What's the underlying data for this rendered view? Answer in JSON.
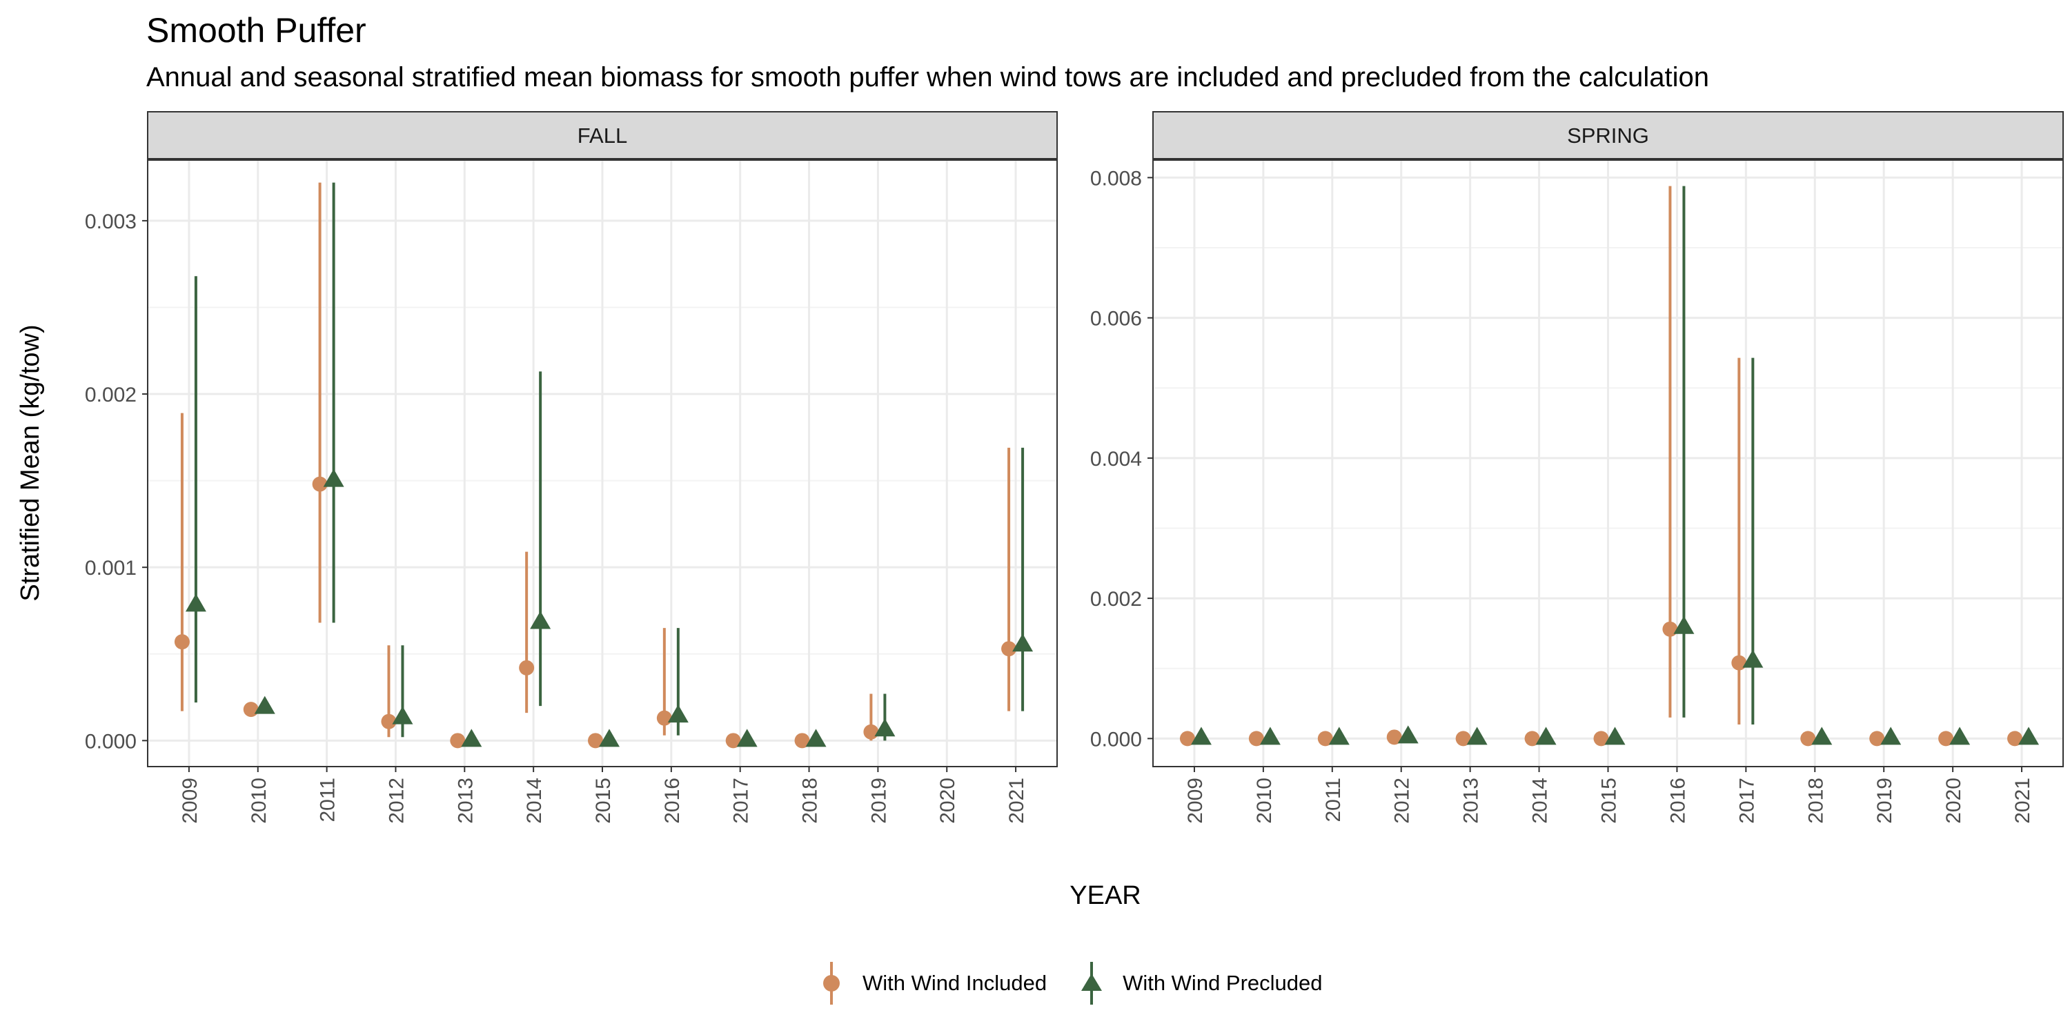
{
  "title": "Smooth Puffer",
  "subtitle": "Annual and seasonal stratified mean biomass for smooth puffer when wind tows are included and precluded from the calculation",
  "colors": {
    "included": "#D08A5C",
    "precluded": "#3B6440",
    "strip_bg": "#D9D9D9",
    "grid": "#EBEBEB",
    "border": "#333333"
  },
  "chart_data": {
    "type": "scatter",
    "title": "Smooth Puffer",
    "subtitle": "Annual and seasonal stratified mean biomass for smooth puffer when wind tows are included and precluded from the calculation",
    "xlabel": "YEAR",
    "ylabel": "Stratified Mean (kg/tow)",
    "legend_position": "bottom",
    "grid": true,
    "x": [
      "2009",
      "2010",
      "2011",
      "2012",
      "2013",
      "2014",
      "2015",
      "2016",
      "2017",
      "2018",
      "2019",
      "2020",
      "2021"
    ],
    "panels": [
      {
        "name": "FALL",
        "ylim": [
          -0.00015,
          0.00335
        ],
        "yticks": [
          0.0,
          0.001,
          0.002,
          0.003
        ],
        "ytick_labels": [
          "0.000",
          "0.001",
          "0.002",
          "0.003"
        ],
        "series": [
          {
            "name": "With Wind Included",
            "values": [
              0.00057,
              0.00018,
              0.00148,
              0.00011,
              0.0,
              0.00042,
              0.0,
              0.00013,
              0.0,
              0.0,
              5e-05,
              null,
              0.00053
            ],
            "lower": [
              0.00017,
              null,
              0.00068,
              2e-05,
              null,
              0.00016,
              null,
              3e-05,
              null,
              null,
              0.0,
              null,
              0.00017
            ],
            "upper": [
              0.00189,
              null,
              0.00322,
              0.00055,
              null,
              0.00109,
              null,
              0.00065,
              null,
              null,
              0.00027,
              null,
              0.00169
            ]
          },
          {
            "name": "With Wind Precluded",
            "values": [
              0.00078,
              0.00019,
              0.0015,
              0.00013,
              0.0,
              0.00068,
              0.0,
              0.00014,
              0.0,
              0.0,
              6e-05,
              null,
              0.00055
            ],
            "lower": [
              0.00022,
              null,
              0.00068,
              2e-05,
              null,
              0.0002,
              null,
              3e-05,
              null,
              null,
              0.0,
              null,
              0.00017
            ],
            "upper": [
              0.00268,
              null,
              0.00322,
              0.00055,
              null,
              0.00213,
              null,
              0.00065,
              null,
              null,
              0.00027,
              null,
              0.00169
            ]
          }
        ]
      },
      {
        "name": "SPRING",
        "ylim": [
          -0.0004,
          0.00825
        ],
        "yticks": [
          0.0,
          0.002,
          0.004,
          0.006,
          0.008
        ],
        "ytick_labels": [
          "0.000",
          "0.002",
          "0.004",
          "0.006",
          "0.008"
        ],
        "series": [
          {
            "name": "With Wind Included",
            "values": [
              0.0,
              0.0,
              0.0,
              2e-05,
              0.0,
              0.0,
              0.0,
              0.00156,
              0.00108,
              0.0,
              0.0,
              0.0,
              0.0
            ],
            "lower": [
              null,
              null,
              null,
              null,
              null,
              null,
              null,
              0.0003,
              0.0002,
              null,
              null,
              null,
              null
            ],
            "upper": [
              null,
              null,
              null,
              null,
              null,
              null,
              null,
              0.00788,
              0.00543,
              null,
              null,
              null,
              null
            ]
          },
          {
            "name": "With Wind Precluded",
            "values": [
              0.0,
              0.0,
              0.0,
              2e-05,
              0.0,
              0.0,
              0.0,
              0.00158,
              0.0011,
              0.0,
              0.0,
              0.0,
              0.0
            ],
            "lower": [
              null,
              null,
              null,
              null,
              null,
              null,
              null,
              0.0003,
              0.0002,
              null,
              null,
              null,
              null
            ],
            "upper": [
              null,
              null,
              null,
              null,
              null,
              null,
              null,
              0.00788,
              0.00543,
              null,
              null,
              null,
              null
            ]
          }
        ]
      }
    ]
  }
}
